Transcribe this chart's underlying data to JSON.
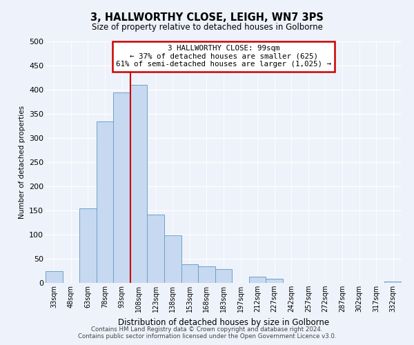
{
  "title": "3, HALLWORTHY CLOSE, LEIGH, WN7 3PS",
  "subtitle": "Size of property relative to detached houses in Golborne",
  "xlabel": "Distribution of detached houses by size in Golborne",
  "ylabel": "Number of detached properties",
  "bar_labels": [
    "33sqm",
    "48sqm",
    "63sqm",
    "78sqm",
    "93sqm",
    "108sqm",
    "123sqm",
    "138sqm",
    "153sqm",
    "168sqm",
    "183sqm",
    "197sqm",
    "212sqm",
    "227sqm",
    "242sqm",
    "257sqm",
    "272sqm",
    "287sqm",
    "302sqm",
    "317sqm",
    "332sqm"
  ],
  "bar_values": [
    25,
    0,
    155,
    335,
    395,
    410,
    142,
    98,
    38,
    35,
    28,
    0,
    13,
    9,
    0,
    0,
    0,
    0,
    0,
    0,
    3
  ],
  "bar_color": "#c6d9f0",
  "bar_edge_color": "#6ea0c8",
  "red_line_x": 4.5,
  "annotation_title": "3 HALLWORTHY CLOSE: 99sqm",
  "annotation_line1": "← 37% of detached houses are smaller (625)",
  "annotation_line2": "61% of semi-detached houses are larger (1,025) →",
  "annotation_box_color": "#ffffff",
  "annotation_box_edge": "#cc0000",
  "red_line_color": "#cc0000",
  "ylim": [
    0,
    500
  ],
  "yticks": [
    0,
    50,
    100,
    150,
    200,
    250,
    300,
    350,
    400,
    450,
    500
  ],
  "footer_line1": "Contains HM Land Registry data © Crown copyright and database right 2024.",
  "footer_line2": "Contains public sector information licensed under the Open Government Licence v3.0.",
  "bg_color": "#eef2fa"
}
